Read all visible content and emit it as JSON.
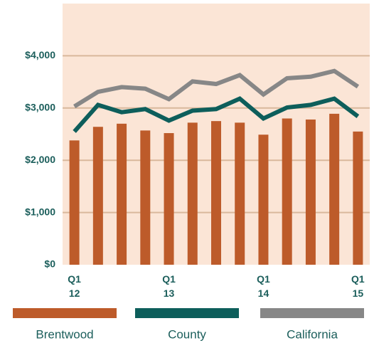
{
  "chart_data": {
    "type": "bar_line",
    "categories": [
      "Q1 12",
      null,
      null,
      null,
      "Q1 13",
      null,
      null,
      null,
      "Q1 14",
      null,
      null,
      null,
      "Q1 15"
    ],
    "series": [
      {
        "name": "Brentwood",
        "color": "#bd5b2a",
        "kind": "bar",
        "values": [
          2380,
          2640,
          2700,
          2570,
          2520,
          2720,
          2750,
          2720,
          2490,
          2800,
          2780,
          2890,
          2550
        ]
      },
      {
        "name": "County",
        "color": "#0d5e5b",
        "kind": "line",
        "values": [
          2550,
          3060,
          2920,
          2980,
          2760,
          2950,
          2980,
          3180,
          2800,
          3010,
          3060,
          3180,
          2840
        ]
      },
      {
        "name": "California",
        "color": "#878787",
        "kind": "line",
        "values": [
          3030,
          3310,
          3400,
          3370,
          3170,
          3510,
          3460,
          3630,
          3260,
          3570,
          3600,
          3710,
          3410
        ]
      }
    ],
    "ylim": [
      0,
      5000
    ],
    "yticks": [
      {
        "value": 0,
        "label": "$0"
      },
      {
        "value": 1000,
        "label": "$1,000"
      },
      {
        "value": 2000,
        "label": "$2,000"
      },
      {
        "value": 3000,
        "label": "$3,000"
      },
      {
        "value": 4000,
        "label": "$4,000"
      }
    ],
    "grid": true
  }
}
